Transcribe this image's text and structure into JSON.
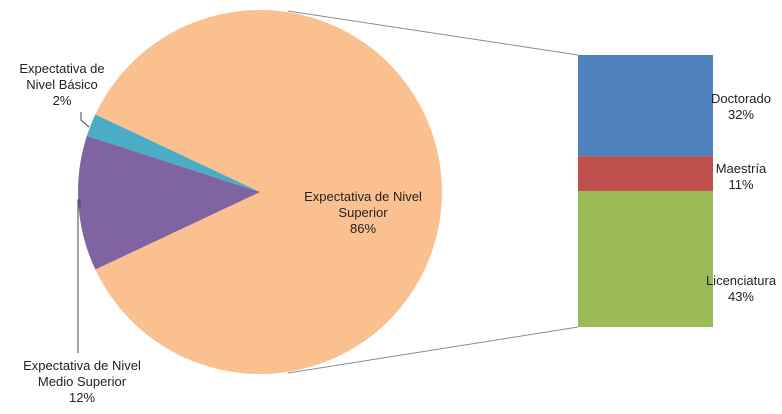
{
  "chart_data": {
    "type": "bar-of-pie",
    "pie": {
      "slices": [
        {
          "name": "Expectativa de Nivel Superior",
          "label_lines": [
            "Expectativa de Nivel",
            "Superior"
          ],
          "value": 86,
          "value_label": "86%",
          "color": "#FAC090"
        },
        {
          "name": "Expectativa de Nivel Medio Superior",
          "label_lines": [
            "Expectativa de Nivel",
            "Medio Superior"
          ],
          "value": 12,
          "value_label": "12%",
          "color": "#8064A2"
        },
        {
          "name": "Expectativa de Nivel Básico",
          "label_lines": [
            "Expectativa de",
            "Nivel Básico"
          ],
          "value": 2,
          "value_label": "2%",
          "color": "#4BACC6"
        }
      ]
    },
    "bar": {
      "segments": [
        {
          "name": "Doctorado",
          "value": 32,
          "value_label": "32%",
          "color": "#4F81BD"
        },
        {
          "name": "Maestría",
          "value": 11,
          "value_label": "11%",
          "color": "#C0504D"
        },
        {
          "name": "Licenciatura",
          "value": 43,
          "value_label": "43%",
          "color": "#9BBB59"
        }
      ]
    }
  }
}
